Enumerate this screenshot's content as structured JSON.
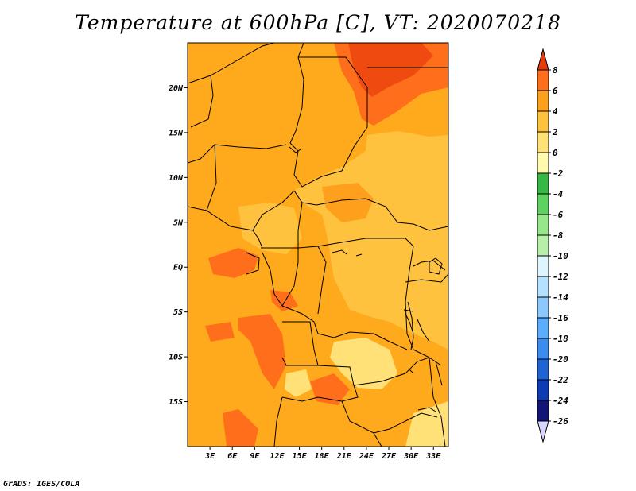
{
  "title": "Temperature at 600hPa [C], VT: 2020070218",
  "credit": "GrADS: IGES/COLA",
  "map": {
    "lon_range": [
      0,
      35
    ],
    "lat_range": [
      -20,
      25
    ],
    "lat_ticks": [
      {
        "value": 20,
        "label": "20N"
      },
      {
        "value": 15,
        "label": "15N"
      },
      {
        "value": 10,
        "label": "10N"
      },
      {
        "value": 5,
        "label": "5N"
      },
      {
        "value": 0,
        "label": "EQ"
      },
      {
        "value": -5,
        "label": "5S"
      },
      {
        "value": -10,
        "label": "10S"
      },
      {
        "value": -15,
        "label": "15S"
      }
    ],
    "lon_ticks": [
      {
        "value": 3,
        "label": "3E"
      },
      {
        "value": 6,
        "label": "6E"
      },
      {
        "value": 9,
        "label": "9E"
      },
      {
        "value": 12,
        "label": "12E"
      },
      {
        "value": 15,
        "label": "15E"
      },
      {
        "value": 18,
        "label": "18E"
      },
      {
        "value": 21,
        "label": "21E"
      },
      {
        "value": 24,
        "label": "24E"
      },
      {
        "value": 27,
        "label": "27E"
      },
      {
        "value": 30,
        "label": "30E"
      },
      {
        "value": 33,
        "label": "33E"
      }
    ],
    "base_color": "#ffaa1c"
  },
  "colorbar": {
    "labels": [
      "8",
      "6",
      "4",
      "2",
      "0",
      "-2",
      "-4",
      "-6",
      "-8",
      "-10",
      "-12",
      "-14",
      "-16",
      "-18",
      "-20",
      "-22",
      "-24",
      "-26"
    ],
    "colors": [
      "#e63c0c",
      "#ff6e1a",
      "#ffa01c",
      "#ffc23f",
      "#ffe178",
      "#fffaac",
      "#35b944",
      "#5ed25f",
      "#96e68a",
      "#b4f0a6",
      "#dcf5ff",
      "#b4e1ff",
      "#8bc8ff",
      "#5aadff",
      "#3c8cf0",
      "#1e64d2",
      "#0c3cb4",
      "#121478",
      "#d6d6ff"
    ]
  }
}
